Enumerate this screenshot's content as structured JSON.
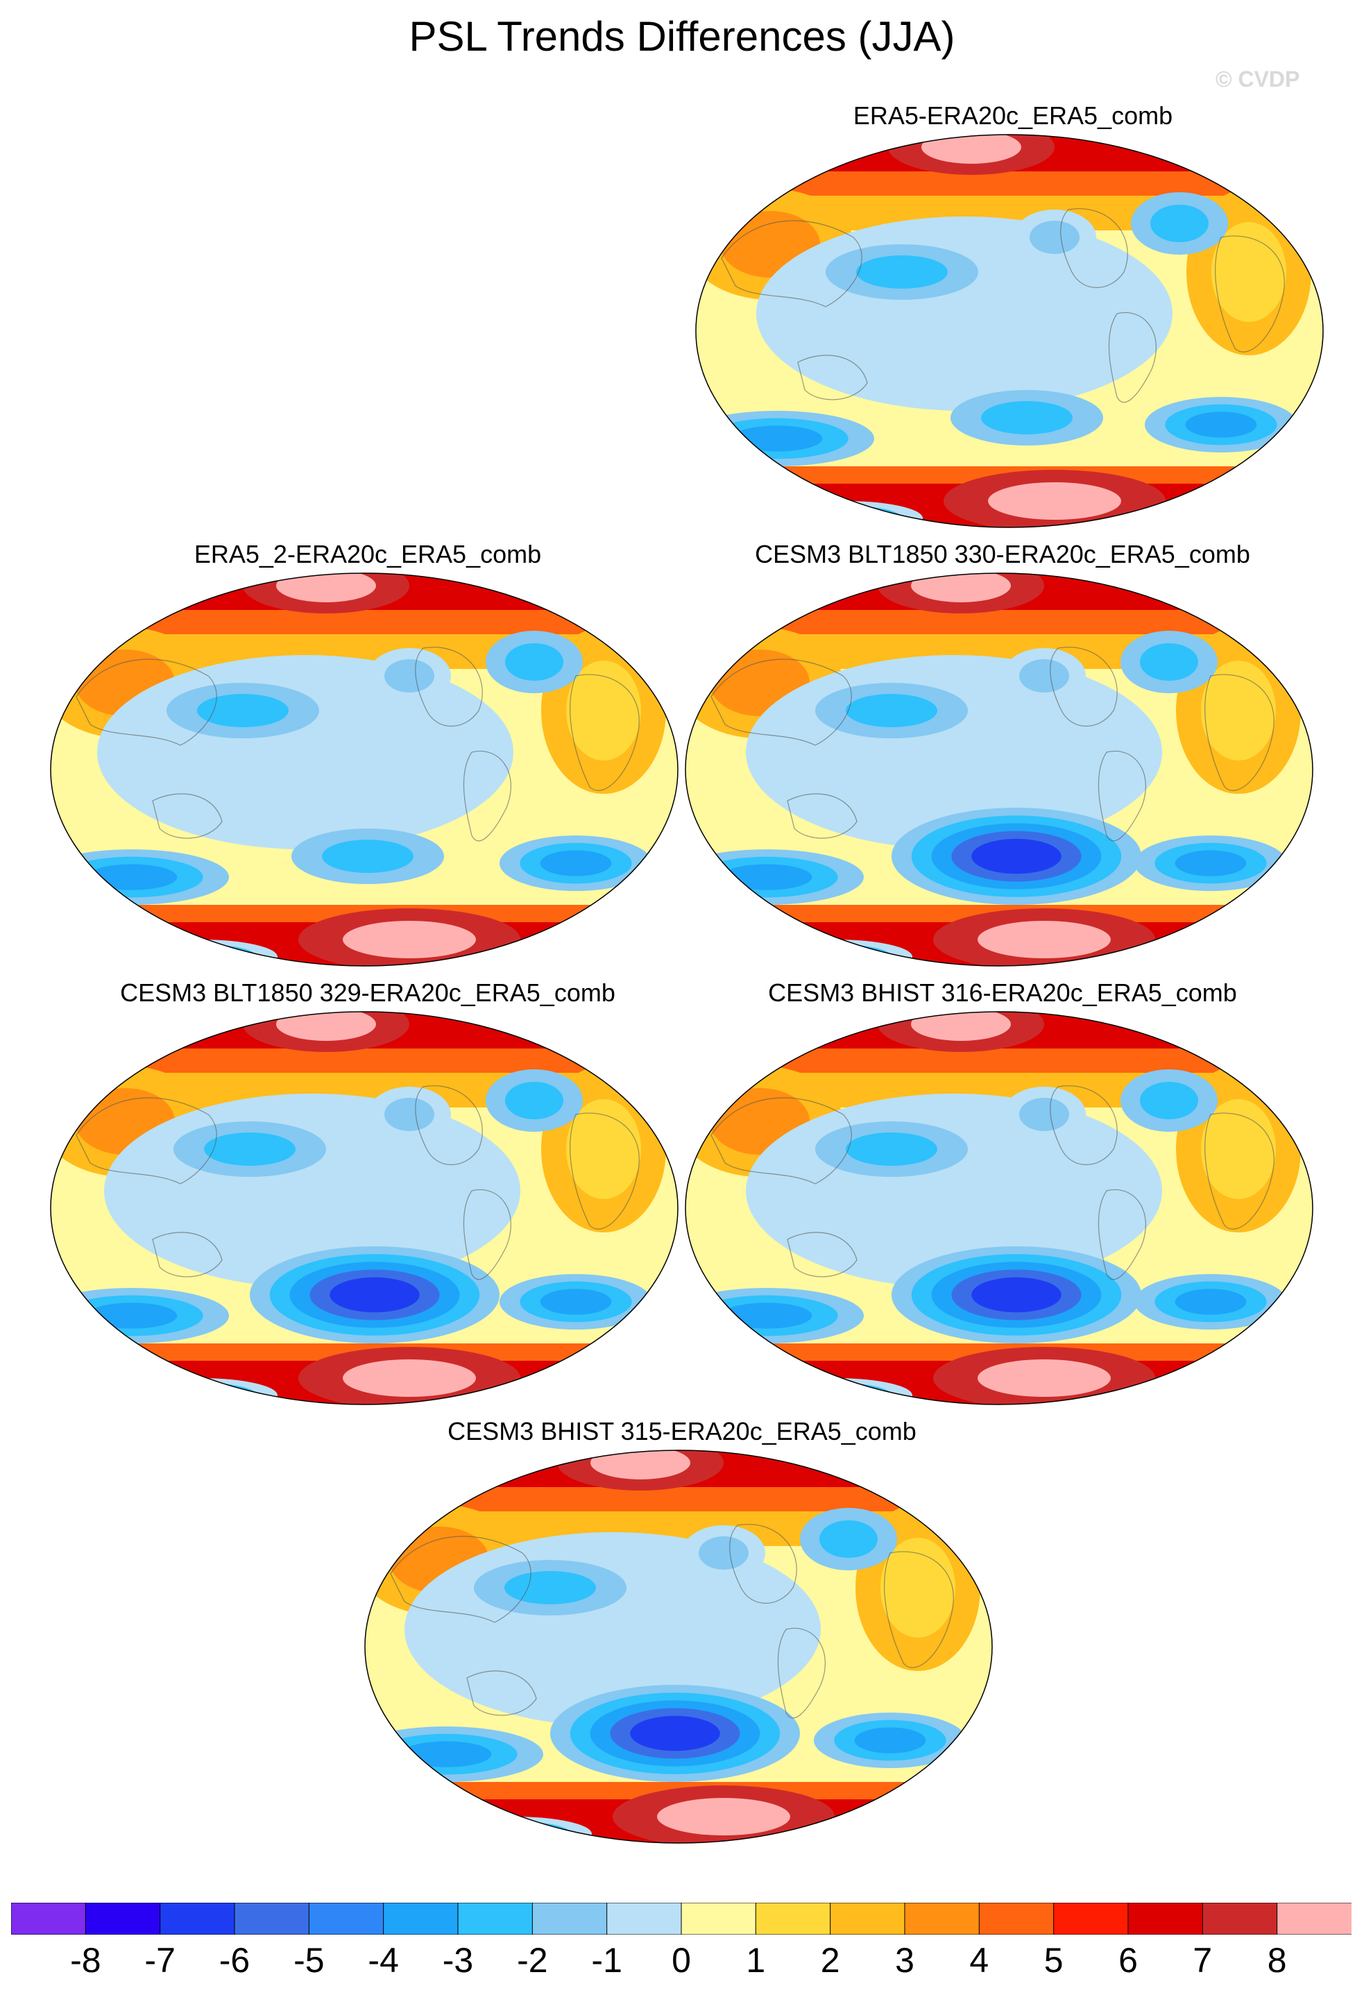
{
  "title": "PSL Trends Differences (JJA)",
  "credit": "© CVDP",
  "panels": [
    {
      "title": "ERA5-ERA20c_ERA5_comb",
      "variant": 0
    },
    {
      "title": "ERA5_2-ERA20c_ERA5_comb",
      "variant": 1
    },
    {
      "title": "CESM3 BLT1850 330-ERA20c_ERA5_comb",
      "variant": 2
    },
    {
      "title": "CESM3 BLT1850 329-ERA20c_ERA5_comb",
      "variant": 3
    },
    {
      "title": "CESM3 BHIST 316-ERA20c_ERA5_comb",
      "variant": 4
    },
    {
      "title": "CESM3 BHIST 315-ERA20c_ERA5_comb",
      "variant": 5
    }
  ],
  "colorbar": {
    "labels": [
      "-8",
      "-7",
      "-6",
      "-5",
      "-4",
      "-3",
      "-2",
      "-1",
      "0",
      "1",
      "2",
      "3",
      "4",
      "5",
      "6",
      "7",
      "8"
    ],
    "colors": [
      "#7f2bf0",
      "#2a00f5",
      "#1e3df2",
      "#3b6ee6",
      "#2f86f6",
      "#1ea4f9",
      "#2ec1fc",
      "#85c8f2",
      "#b9e0f6",
      "#fff9a0",
      "#ffd93a",
      "#ffbc1c",
      "#ff9012",
      "#ff6410",
      "#ff1c00",
      "#dc0000",
      "#cc2a2a",
      "#ffb1b1"
    ]
  }
}
